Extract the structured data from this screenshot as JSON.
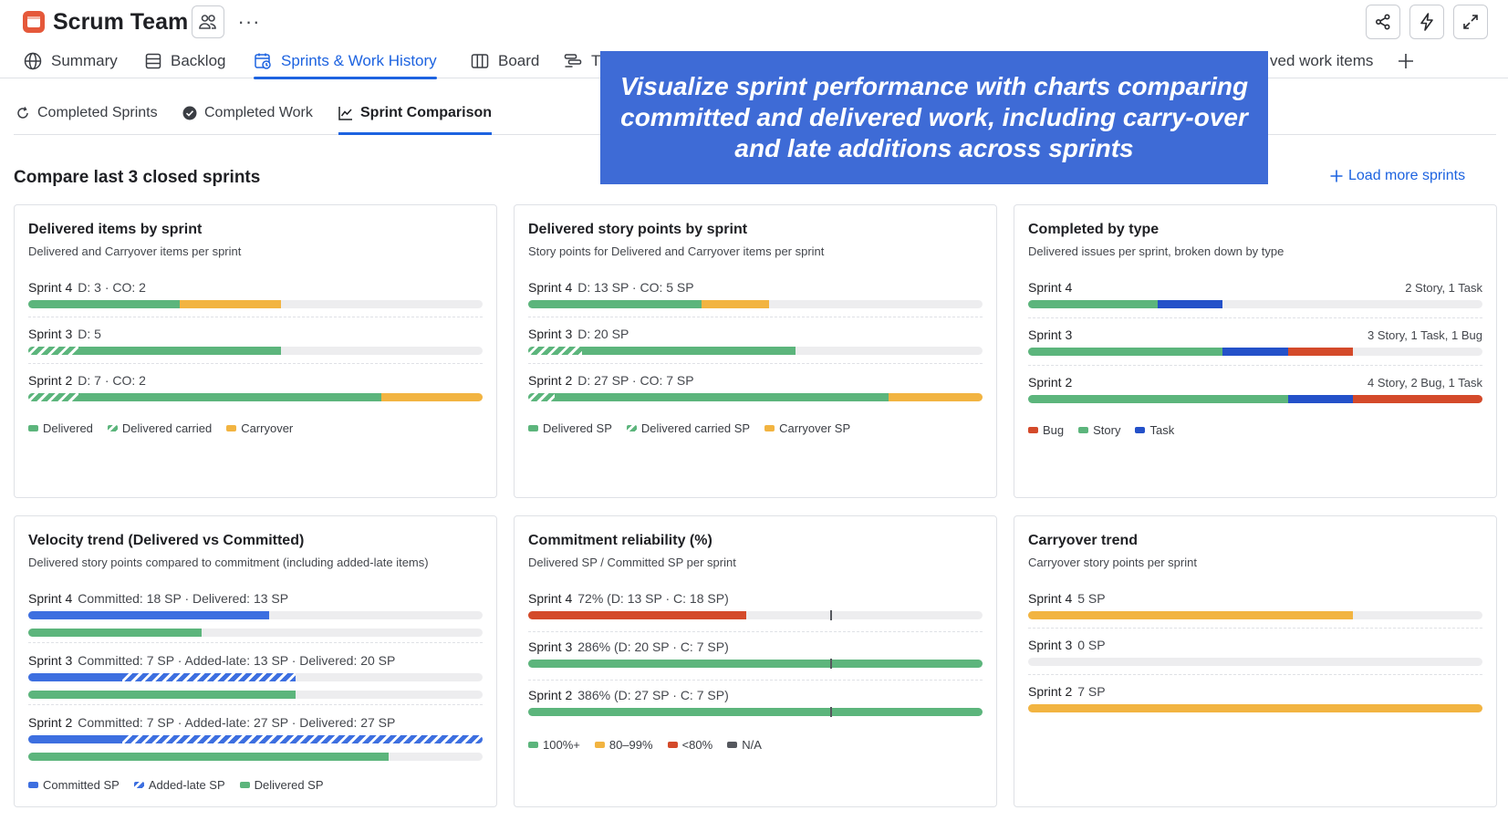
{
  "header": {
    "title": "Scrum Team",
    "team_icon": "people-icon",
    "more_label": "···"
  },
  "main_tabs": [
    {
      "label": "Summary",
      "icon": "globe-icon"
    },
    {
      "label": "Backlog",
      "icon": "backlog-icon"
    },
    {
      "label": "Sprints & Work History",
      "icon": "sprint-history-icon",
      "active": true
    },
    {
      "label": "Board",
      "icon": "board-icon"
    },
    {
      "label": "T",
      "icon": "timeline-icon"
    },
    {
      "label": "ved work items",
      "icon": ""
    }
  ],
  "sub_tabs": [
    {
      "label": "Completed Sprints",
      "icon": "sprint-icon"
    },
    {
      "label": "Completed Work",
      "icon": "check-circle-icon"
    },
    {
      "label": "Sprint Comparison",
      "icon": "chart-icon",
      "active": true
    }
  ],
  "section": {
    "title": "Compare last 3 closed sprints",
    "load_more": "Load more sprints"
  },
  "overlay_text": "Visualize sprint performance with charts comparing committed and delivered work, including carry-over and late additions across sprints",
  "colors": {
    "delivered": "#5cb57c",
    "carryover": "#f2b441",
    "committed": "#3d6fe0",
    "bug": "#d44a2a",
    "story": "#5cb57c",
    "task": "#2451c9",
    "under80": "#d44a2a",
    "na": "#55585e",
    "accent": "#1d63e0"
  },
  "cards": {
    "delivered_items": {
      "title": "Delivered items by sprint",
      "subtitle": "Delivered and Carryover items per sprint",
      "rows": [
        {
          "name": "Sprint 4",
          "detail": "D: 3 · CO: 2"
        },
        {
          "name": "Sprint 3",
          "detail": "D: 5"
        },
        {
          "name": "Sprint 2",
          "detail": "D: 7 · CO: 2"
        }
      ],
      "legend": [
        "Delivered",
        "Delivered carried",
        "Carryover"
      ]
    },
    "delivered_sp": {
      "title": "Delivered story points by sprint",
      "subtitle": "Story points for Delivered and Carryover items per sprint",
      "rows": [
        {
          "name": "Sprint 4",
          "detail": "D: 13 SP · CO: 5 SP"
        },
        {
          "name": "Sprint 3",
          "detail": "D: 20 SP"
        },
        {
          "name": "Sprint 2",
          "detail": "D: 27 SP · CO: 7 SP"
        }
      ],
      "legend": [
        "Delivered SP",
        "Delivered carried SP",
        "Carryover SP"
      ]
    },
    "by_type": {
      "title": "Completed by type",
      "subtitle": "Delivered issues per sprint, broken down by type",
      "rows": [
        {
          "name": "Sprint 4",
          "summary": "2 Story, 1 Task"
        },
        {
          "name": "Sprint 3",
          "summary": "3 Story, 1 Task, 1 Bug"
        },
        {
          "name": "Sprint 2",
          "summary": "4 Story, 2 Bug, 1 Task"
        }
      ],
      "legend": [
        "Bug",
        "Story",
        "Task"
      ]
    },
    "velocity": {
      "title": "Velocity trend (Delivered vs Committed)",
      "subtitle": "Delivered story points compared to commitment (including added-late items)",
      "rows": [
        {
          "name": "Sprint 4",
          "detail": "Committed: 18 SP · Delivered: 13 SP"
        },
        {
          "name": "Sprint 3",
          "detail": "Committed: 7 SP · Added-late: 13 SP · Delivered: 20 SP"
        },
        {
          "name": "Sprint 2",
          "detail": "Committed: 7 SP · Added-late: 27 SP · Delivered: 27 SP"
        }
      ],
      "legend": [
        "Committed SP",
        "Added-late SP",
        "Delivered SP"
      ]
    },
    "reliability": {
      "title": "Commitment reliability (%)",
      "subtitle": "Delivered SP / Committed SP per sprint",
      "rows": [
        {
          "name": "Sprint 4",
          "detail": "72% (D: 13 SP · C: 18 SP)"
        },
        {
          "name": "Sprint 3",
          "detail": "286% (D: 20 SP · C: 7 SP)"
        },
        {
          "name": "Sprint 2",
          "detail": "386% (D: 27 SP · C: 7 SP)"
        }
      ],
      "legend": [
        "100%+",
        "80–99%",
        "<80%",
        "N/A"
      ]
    },
    "carryover_trend": {
      "title": "Carryover trend",
      "subtitle": "Carryover story points per sprint",
      "rows": [
        {
          "name": "Sprint 4",
          "detail": "5 SP"
        },
        {
          "name": "Sprint 3",
          "detail": "0 SP"
        },
        {
          "name": "Sprint 2",
          "detail": "7 SP"
        }
      ]
    }
  },
  "chart_data": [
    {
      "type": "bar",
      "title": "Delivered items by sprint",
      "categories": [
        "Sprint 4",
        "Sprint 3",
        "Sprint 2"
      ],
      "max": 9,
      "series": [
        {
          "name": "Delivered carried",
          "values": [
            0,
            1,
            1
          ]
        },
        {
          "name": "Delivered",
          "values": [
            3,
            4,
            6
          ]
        },
        {
          "name": "Carryover",
          "values": [
            2,
            0,
            2
          ]
        }
      ]
    },
    {
      "type": "bar",
      "title": "Delivered story points by sprint",
      "categories": [
        "Sprint 4",
        "Sprint 3",
        "Sprint 2"
      ],
      "max": 34,
      "series": [
        {
          "name": "Delivered carried SP",
          "values": [
            0,
            4,
            2
          ]
        },
        {
          "name": "Delivered SP",
          "values": [
            13,
            16,
            25
          ]
        },
        {
          "name": "Carryover SP",
          "values": [
            5,
            0,
            7
          ]
        }
      ]
    },
    {
      "type": "bar",
      "title": "Completed by type",
      "categories": [
        "Sprint 4",
        "Sprint 3",
        "Sprint 2"
      ],
      "max": 7,
      "series": [
        {
          "name": "Story",
          "values": [
            2,
            3,
            4
          ]
        },
        {
          "name": "Task",
          "values": [
            1,
            1,
            1
          ]
        },
        {
          "name": "Bug",
          "values": [
            0,
            1,
            2
          ]
        }
      ]
    },
    {
      "type": "bar",
      "title": "Velocity trend (Delivered vs Committed)",
      "categories": [
        "Sprint 4",
        "Sprint 3",
        "Sprint 2"
      ],
      "max": 34,
      "series": [
        {
          "name": "Committed SP",
          "values": [
            18,
            7,
            7
          ]
        },
        {
          "name": "Added-late SP",
          "values": [
            0,
            13,
            27
          ]
        },
        {
          "name": "Delivered SP",
          "values": [
            13,
            20,
            27
          ]
        }
      ]
    },
    {
      "type": "bar",
      "title": "Commitment reliability (%)",
      "categories": [
        "Sprint 4",
        "Sprint 3",
        "Sprint 2"
      ],
      "max": 150,
      "target": 100,
      "values": [
        72,
        286,
        386
      ]
    },
    {
      "type": "bar",
      "title": "Carryover trend",
      "categories": [
        "Sprint 4",
        "Sprint 3",
        "Sprint 2"
      ],
      "max": 7,
      "values": [
        5,
        0,
        7
      ]
    }
  ]
}
